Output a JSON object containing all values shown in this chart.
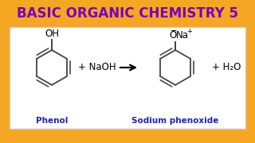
{
  "title": "BASIC ORGANIC CHEMISTRY 5",
  "title_color": "#7B00BB",
  "bg_color": "#F5A623",
  "box_bg": "#FFFFFF",
  "box_edge": "#CCCCCC",
  "phenol_label": "Phenol",
  "product_label": "Sodium phenoxide",
  "label_color": "#2222BB",
  "reagent": "+ NaOH",
  "product_extra": "+ H₂O",
  "oh_text": "OH",
  "ring_color": "#444444",
  "ring_lw": 1.3,
  "ring_inner_lw": 1.1,
  "bond_color": "#333333"
}
